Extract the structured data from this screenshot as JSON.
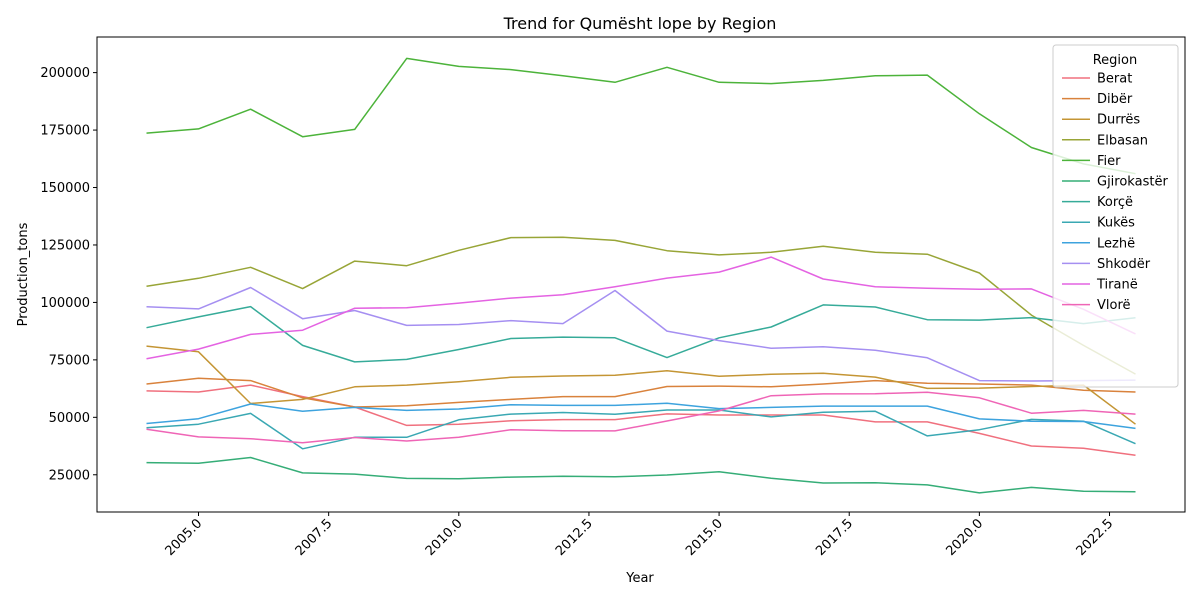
{
  "chart_data": {
    "type": "line",
    "title": "Trend for Qumësht lope by Region",
    "xlabel": "Year",
    "ylabel": "Production_tons",
    "legend_title": "Region",
    "legend_position": "top-right",
    "grid": false,
    "xlim": [
      2003.05,
      2023.95
    ],
    "ylim": [
      8800,
      215500
    ],
    "x_ticks": [
      2005.0,
      2007.5,
      2010.0,
      2012.5,
      2015.0,
      2017.5,
      2020.0,
      2022.5
    ],
    "x_tick_labels": [
      "2005.0",
      "2007.5",
      "2010.0",
      "2012.5",
      "2015.0",
      "2017.5",
      "2020.0",
      "2022.5"
    ],
    "y_ticks": [
      25000,
      50000,
      75000,
      100000,
      125000,
      150000,
      175000,
      200000
    ],
    "y_tick_labels": [
      "25000",
      "50000",
      "75000",
      "100000",
      "125000",
      "150000",
      "175000",
      "200000"
    ],
    "x": [
      2004,
      2005,
      2006,
      2007,
      2008,
      2009,
      2010,
      2011,
      2012,
      2013,
      2014,
      2015,
      2016,
      2017,
      2018,
      2019,
      2020,
      2021,
      2022,
      2023
    ],
    "series": [
      {
        "name": "Berat",
        "color": "#f0707e",
        "values": [
          61500,
          61000,
          64000,
          59000,
          54500,
          46500,
          47000,
          48500,
          49000,
          49000,
          51500,
          51000,
          51000,
          51000,
          48000,
          48000,
          43000,
          37500,
          36500,
          33500
        ]
      },
      {
        "name": "Dibër",
        "color": "#d9823c",
        "values": [
          64500,
          67000,
          66000,
          58500,
          54500,
          55000,
          56500,
          57800,
          59000,
          59000,
          63400,
          63600,
          63300,
          64500,
          66000,
          64800,
          64500,
          64000,
          61800,
          61000
        ]
      },
      {
        "name": "Durrës",
        "color": "#c49534",
        "values": [
          81000,
          78500,
          56000,
          57800,
          63300,
          64000,
          65500,
          67400,
          68000,
          68300,
          70300,
          67900,
          68700,
          69200,
          67500,
          62600,
          62700,
          63400,
          64000,
          47000
        ]
      },
      {
        "name": "Elbasan",
        "color": "#98a537",
        "values": [
          107000,
          110500,
          115300,
          106000,
          118000,
          116000,
          122700,
          128200,
          128400,
          127000,
          122500,
          120700,
          121800,
          124400,
          121800,
          121000,
          112800,
          94500,
          81300,
          68800
        ]
      },
      {
        "name": "Fier",
        "color": "#4cb33a",
        "values": [
          173700,
          175500,
          184100,
          172100,
          175300,
          206200,
          202700,
          201300,
          198600,
          195800,
          202300,
          195800,
          195200,
          196600,
          198600,
          198900,
          182100,
          167400,
          160300,
          156000
        ]
      },
      {
        "name": "Gjirokastër",
        "color": "#35ad77",
        "values": [
          30300,
          30000,
          32500,
          25800,
          25300,
          23400,
          23300,
          24000,
          24400,
          24100,
          24900,
          26300,
          23500,
          21400,
          21500,
          20600,
          17100,
          19500,
          17800,
          17600
        ]
      },
      {
        "name": "Korçë",
        "color": "#36ab99",
        "values": [
          89000,
          93700,
          98200,
          81300,
          74100,
          75200,
          79500,
          84300,
          84900,
          84600,
          76000,
          84600,
          89300,
          98900,
          98000,
          92500,
          92300,
          93400,
          90800,
          93300
        ]
      },
      {
        "name": "Kukës",
        "color": "#3aa8b3",
        "values": [
          45500,
          47000,
          51700,
          36300,
          41300,
          41300,
          48900,
          51400,
          52100,
          51300,
          53200,
          53200,
          50200,
          52200,
          52600,
          41900,
          44600,
          49100,
          48300,
          38500
        ]
      },
      {
        "name": "Lezhë",
        "color": "#3da3de",
        "values": [
          47300,
          49400,
          55800,
          52600,
          54300,
          53000,
          53600,
          55500,
          55200,
          55200,
          56100,
          53800,
          54300,
          54900,
          54900,
          54900,
          49300,
          48300,
          48200,
          45200
        ]
      },
      {
        "name": "Shkodër",
        "color": "#a58ff1",
        "values": [
          98100,
          97200,
          106500,
          92900,
          96500,
          90000,
          90400,
          92100,
          90800,
          105200,
          87500,
          83400,
          80100,
          80700,
          79200,
          75900,
          66000,
          65800,
          66000,
          66200
        ]
      },
      {
        "name": "Tiranë",
        "color": "#e463e2",
        "values": [
          75500,
          79700,
          86100,
          87900,
          97500,
          97700,
          99700,
          101900,
          103300,
          106800,
          110600,
          113200,
          119700,
          110200,
          106800,
          106200,
          105700,
          105900,
          97000,
          86300
        ]
      },
      {
        "name": "Vlorë",
        "color": "#ef65b6",
        "values": [
          44800,
          41500,
          40700,
          38900,
          41200,
          39700,
          41300,
          44600,
          44200,
          44100,
          48400,
          52800,
          59400,
          60200,
          60300,
          60900,
          58500,
          51800,
          53000,
          51400
        ]
      }
    ]
  }
}
